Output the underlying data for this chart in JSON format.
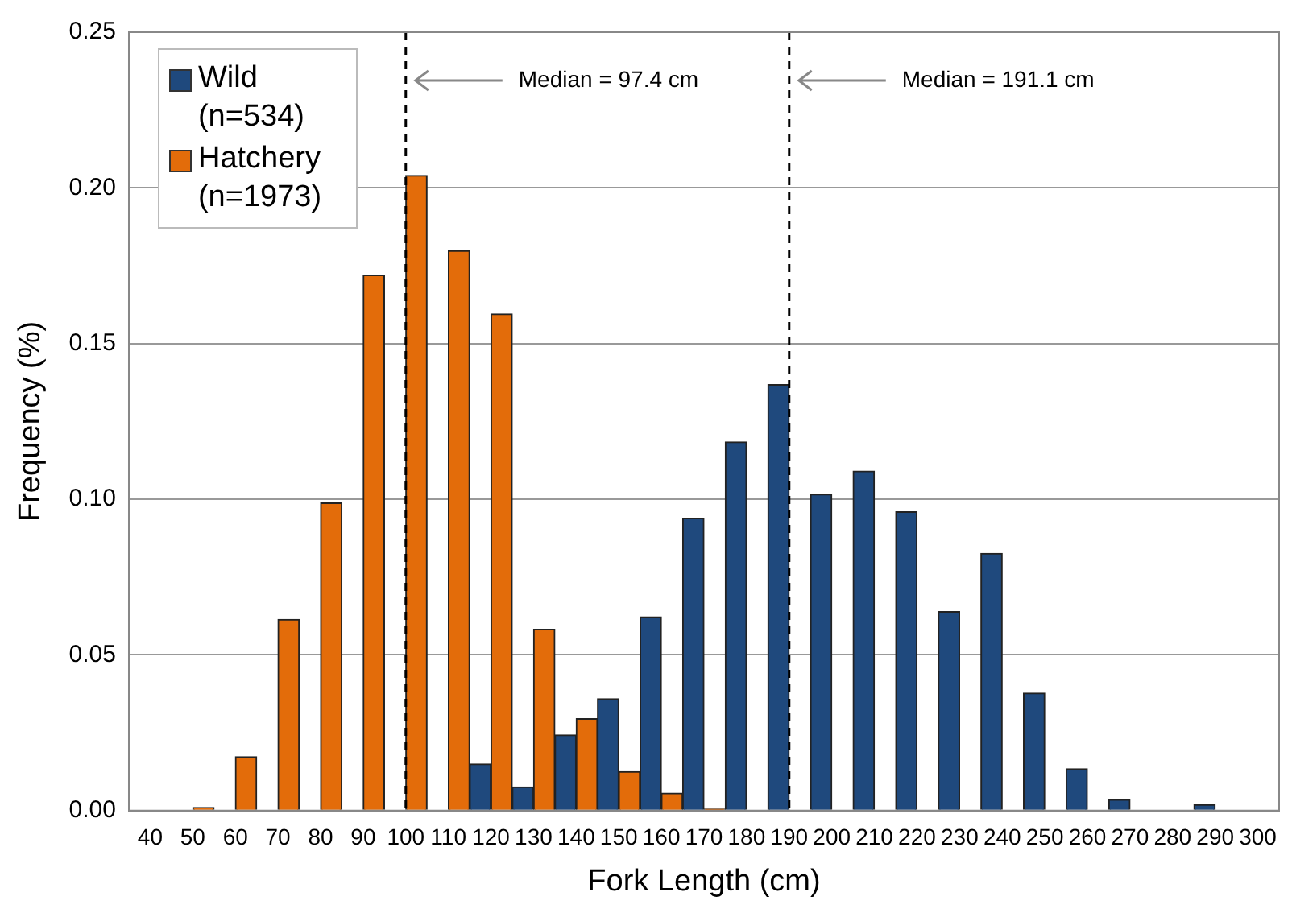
{
  "chart_data": {
    "type": "bar",
    "xlabel": "Fork Length (cm)",
    "ylabel": "Frequency (%)",
    "categories": [
      "40",
      "50",
      "60",
      "70",
      "80",
      "90",
      "100",
      "110",
      "120",
      "130",
      "140",
      "150",
      "160",
      "170",
      "180",
      "190",
      "200",
      "210",
      "220",
      "230",
      "240",
      "250",
      "260",
      "270",
      "280",
      "290",
      "300"
    ],
    "series": [
      {
        "name": "Wild (n=534)",
        "color": "#1f497d",
        "values": [
          0,
          0,
          0,
          0,
          0,
          0,
          0,
          0,
          0.015,
          0.0076,
          0.0243,
          0.0359,
          0.0622,
          0.0939,
          0.1184,
          0.1368,
          0.1016,
          0.109,
          0.096,
          0.0639,
          0.0826,
          0.0377,
          0.0134,
          0.0035,
          0,
          0.0019,
          0
        ]
      },
      {
        "name": "Hatchery (n=1973)",
        "color": "#e36c0a",
        "values": [
          0,
          0.001,
          0.0173,
          0.0614,
          0.0988,
          0.172,
          0.204,
          0.1798,
          0.1595,
          0.0582,
          0.0295,
          0.0125,
          0.0056,
          0.0005,
          0,
          0,
          0,
          0,
          0,
          0,
          0,
          0,
          0,
          0,
          0,
          0,
          0
        ]
      }
    ],
    "ylim": [
      0,
      0.25
    ],
    "yticks": [
      {
        "value": 0,
        "label": "0.00"
      },
      {
        "value": 0.05,
        "label": "0.05"
      },
      {
        "value": 0.1,
        "label": "0.10"
      },
      {
        "value": 0.15,
        "label": "0.15"
      },
      {
        "value": 0.2,
        "label": "0.20"
      },
      {
        "value": 0.25,
        "label": "0.25"
      }
    ],
    "grid": "y",
    "legend": "top left",
    "ref_lines": [
      {
        "axis": "x",
        "value": "100",
        "label": "Median = 97.4 cm",
        "line_style": "dashed"
      },
      {
        "axis": "x",
        "value": "190",
        "label": "Median = 191.1 cm",
        "line_style": "dashed"
      }
    ]
  }
}
